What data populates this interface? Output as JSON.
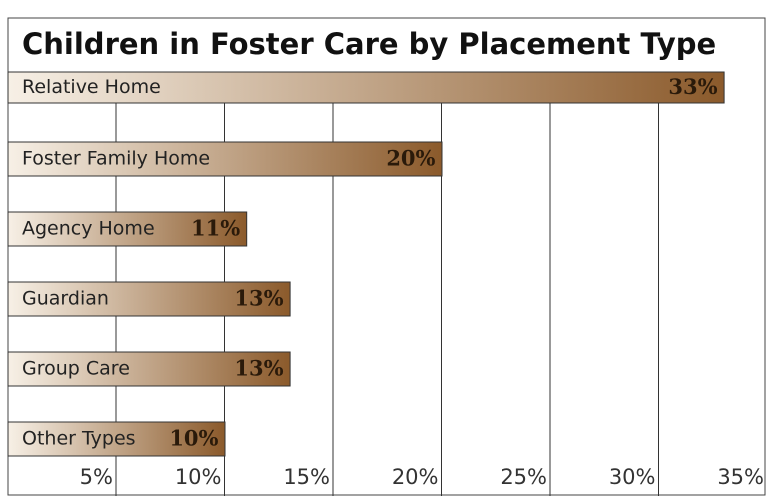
{
  "chart_data": {
    "type": "bar",
    "orientation": "horizontal",
    "title": "Children in Foster Care by Placement Type",
    "categories": [
      "Relative Home",
      "Foster Family Home",
      "Agency Home",
      "Guardian",
      "Group Care",
      "Other Types"
    ],
    "values": [
      33,
      20,
      11,
      13,
      13,
      10
    ],
    "value_labels": [
      "33%",
      "20%",
      "11%",
      "13%",
      "13%",
      "10%"
    ],
    "color": "#8b5a2b",
    "xlim": [
      0,
      35
    ],
    "xticks": [
      {
        "value": 5,
        "label": "5%"
      },
      {
        "value": 10,
        "label": "10%"
      },
      {
        "value": 15,
        "label": "15%"
      },
      {
        "value": 20,
        "label": "20%"
      },
      {
        "value": 25,
        "label": "25%"
      },
      {
        "value": 30,
        "label": "30%"
      },
      {
        "value": 35,
        "label": "35%"
      }
    ],
    "grid": true
  }
}
